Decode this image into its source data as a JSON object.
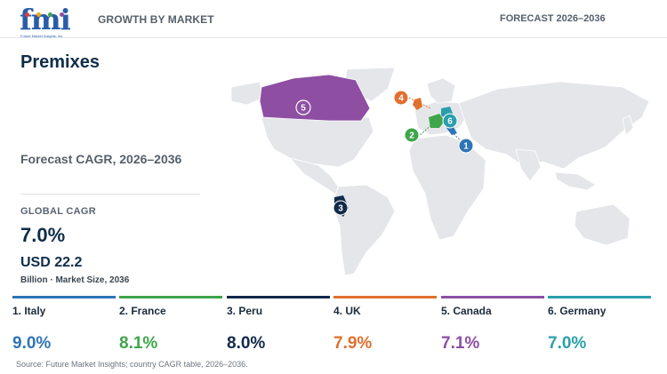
{
  "header": {
    "logo_text": "fmi",
    "logo_tagline": "Future Market Insights, Inc.",
    "section_label": "GROWTH BY MARKET",
    "forecast_label": "FORECAST 2026–2036"
  },
  "main": {
    "title": "Premixes",
    "subtitle": "Forecast CAGR, 2026–2036",
    "global_cagr_label": "GLOBAL CAGR",
    "global_cagr_value": "7.0%",
    "market_size_value": "USD 22.2",
    "market_size_caption": "Billion · Market Size, 2036"
  },
  "map": {
    "markers": [
      {
        "rank": "1",
        "country": "Italy",
        "color": "#2e75b6"
      },
      {
        "rank": "2",
        "country": "France",
        "color": "#3fa54b"
      },
      {
        "rank": "3",
        "country": "Peru",
        "color": "#13294b"
      },
      {
        "rank": "4",
        "country": "UK",
        "color": "#e07030"
      },
      {
        "rank": "5",
        "country": "Canada",
        "color": "#8e4fa3"
      },
      {
        "rank": "6",
        "country": "Germany",
        "color": "#2a9fac"
      }
    ]
  },
  "countries": [
    {
      "label": "1. Italy",
      "cagr": "9.0%",
      "color": "#2e75b6"
    },
    {
      "label": "2. France",
      "cagr": "8.1%",
      "color": "#3fa54b"
    },
    {
      "label": "3. Peru",
      "cagr": "8.0%",
      "color": "#13294b"
    },
    {
      "label": "4. UK",
      "cagr": "7.9%",
      "color": "#e07030"
    },
    {
      "label": "5. Canada",
      "cagr": "7.1%",
      "color": "#8e4fa3"
    },
    {
      "label": "6. Germany",
      "cagr": "7.0%",
      "color": "#2a9fac"
    }
  ],
  "footer": {
    "source": "Source: Future Market Insights; country CAGR table, 2026–2036."
  }
}
